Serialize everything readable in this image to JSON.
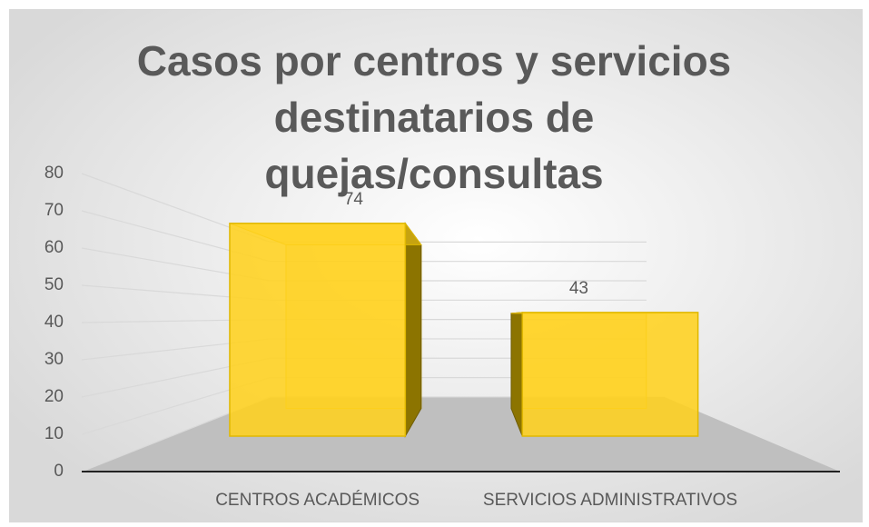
{
  "chart_data": {
    "type": "bar3d",
    "title": "Casos por centros y servicios destinatarios de quejas/consultas",
    "categories": [
      "CENTROS ACADÉMICOS",
      "SERVICIOS ADMINISTRATIVOS"
    ],
    "values": [
      74,
      43
    ],
    "color": "#ffd21f",
    "ylim": [
      0,
      80
    ],
    "yticks": [
      0,
      10,
      20,
      30,
      40,
      50,
      60,
      70,
      80
    ],
    "grid": true
  }
}
